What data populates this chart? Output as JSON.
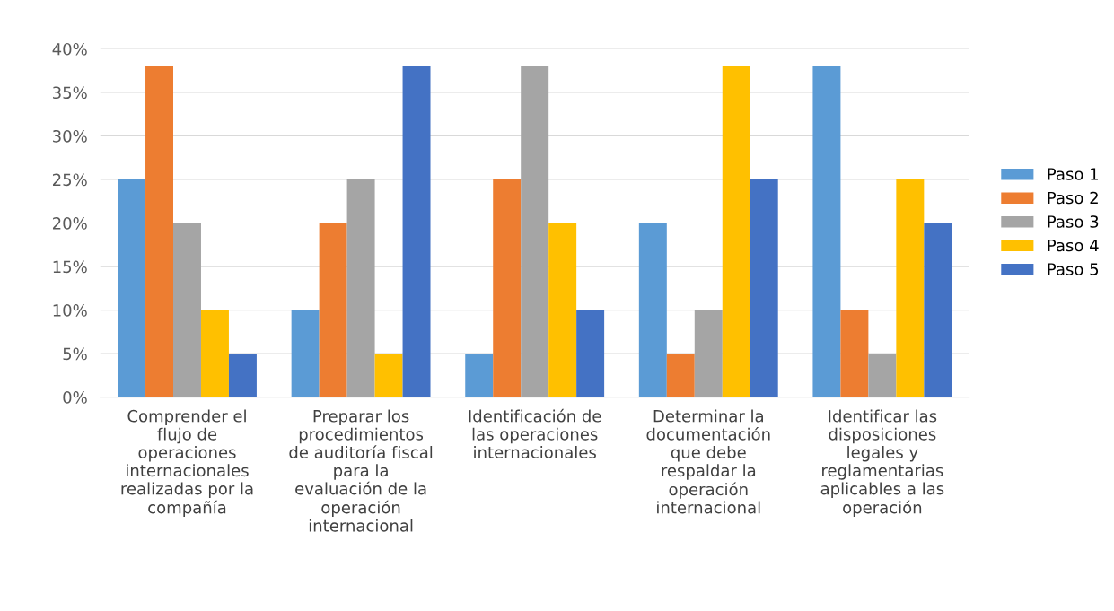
{
  "chart_data": {
    "type": "bar",
    "categories": [
      "Comprender el\nflujo de\noperaciones\ninternacionales\nrealizadas por la\ncompañía",
      "Preparar los\nprocedimientos\nde auditoría fiscal\npara la\nevaluación de la\noperación\ninternacional",
      "Identificación de\nlas operaciones\ninternacionales",
      "Determinar la\ndocumentación\nque debe\nrespaldar la\noperación\ninternacional",
      "Identificar las\ndisposiciones\nlegales y\nreglamentarias\naplicables a las\noperación"
    ],
    "series": [
      {
        "name": "Paso 1",
        "color": "#5b9bd5",
        "values": [
          25,
          10,
          5,
          20,
          38
        ]
      },
      {
        "name": "Paso 2",
        "color": "#ed7d31",
        "values": [
          38,
          20,
          25,
          5,
          10
        ]
      },
      {
        "name": "Paso 3",
        "color": "#a5a5a5",
        "values": [
          20,
          25,
          38,
          10,
          5
        ]
      },
      {
        "name": "Paso 4",
        "color": "#ffc000",
        "values": [
          10,
          5,
          20,
          38,
          25
        ]
      },
      {
        "name": "Paso 5",
        "color": "#4472c4",
        "values": [
          5,
          38,
          10,
          25,
          20
        ]
      }
    ],
    "ylim": [
      0,
      40
    ],
    "yticks": [
      {
        "value": 0,
        "label": "0%"
      },
      {
        "value": 5,
        "label": "5%"
      },
      {
        "value": 10,
        "label": "10%"
      },
      {
        "value": 15,
        "label": "15%"
      },
      {
        "value": 20,
        "label": "20%"
      },
      {
        "value": 25,
        "label": "25%"
      },
      {
        "value": 30,
        "label": "30%"
      },
      {
        "value": 35,
        "label": "35%"
      },
      {
        "value": 40,
        "label": "40%"
      }
    ],
    "grid": "y",
    "legend": "right"
  }
}
